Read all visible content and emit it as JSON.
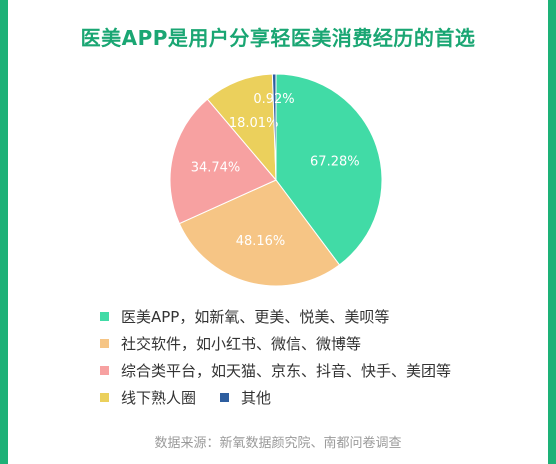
{
  "chart_data": {
    "type": "pie",
    "title": "医美APP是用户分享轻医美消费经历的首选",
    "slices": [
      {
        "label": "医美APP，如新氧、更美、悦美、美呗等",
        "value": 67.28,
        "display": "67.28%",
        "color": "#41dba6"
      },
      {
        "label": "社交软件，如小红书、微信、微博等",
        "value": 48.16,
        "display": "48.16%",
        "color": "#f6c585"
      },
      {
        "label": "综合类平台，如天猫、京东、抖音、快手、美团等",
        "value": 34.74,
        "display": "34.74%",
        "color": "#f7a1a1"
      },
      {
        "label": "线下熟人圈",
        "value": 18.01,
        "display": "18.01%",
        "color": "#ebd05c"
      },
      {
        "label": "其他",
        "value": 0.92,
        "display": "0.92%",
        "color": "#2e5e9f"
      }
    ],
    "legend_position": "bottom",
    "source": "数据来源：新氧数据颜究院、南都问卷调查"
  },
  "colors": {
    "border": "#1db177",
    "title": "#1aa673"
  }
}
